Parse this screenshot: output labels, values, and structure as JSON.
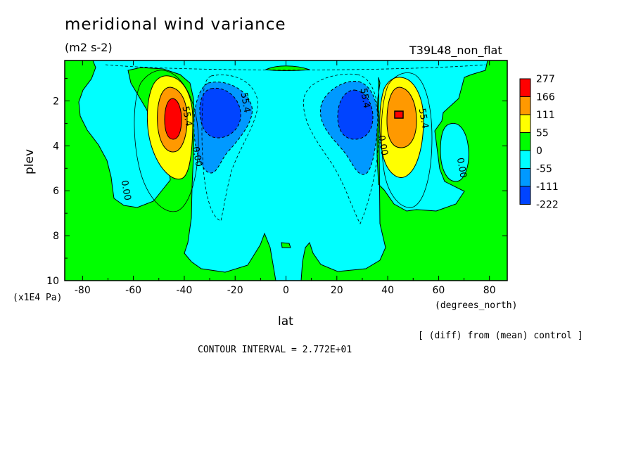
{
  "header": {
    "title": "meridional wind variance",
    "units": "(m2 s-2)",
    "run_label": "T39L48_non_flat"
  },
  "footer": {
    "y_unit_note": "(x1E4 Pa)",
    "x_unit_note": "(degrees_north)",
    "diff_note": "[ (diff) from (mean) control ]",
    "contour_interval": "CONTOUR INTERVAL = 2.772E+01"
  },
  "chart_data": {
    "type": "contour",
    "xlabel": "lat",
    "ylabel": "plev",
    "xlim": [
      -87,
      87
    ],
    "ylim": [
      10,
      0.2
    ],
    "y_inverted": true,
    "x_ticks": [
      -80,
      -60,
      -40,
      -20,
      0,
      20,
      40,
      60,
      80
    ],
    "y_ticks": [
      2,
      4,
      6,
      8,
      10
    ],
    "contour_interval": 27.72,
    "contour_labels": [
      {
        "text": "55.4",
        "lat": -40,
        "plev": 2.7
      },
      {
        "text": "55.4",
        "lat": -17,
        "plev": 2.1
      },
      {
        "text": "0.00",
        "lat": -36,
        "plev": 4.5
      },
      {
        "text": "0.00",
        "lat": -64,
        "plev": 6.0
      },
      {
        "text": "55.4",
        "lat": 30,
        "plev": 1.9
      },
      {
        "text": "0.00",
        "lat": 37,
        "plev": 4.0
      },
      {
        "text": "55.4",
        "lat": 53,
        "plev": 2.8
      },
      {
        "text": "0.00",
        "lat": 68,
        "plev": 5.0
      }
    ],
    "legend": {
      "placement": "right",
      "levels": [
        "277",
        "166",
        "111",
        "55",
        "0",
        "-55",
        "-111",
        "-222"
      ],
      "colors": [
        "#ff0000",
        "#ff9900",
        "#ffff00",
        "#00ff00",
        "#00ffff",
        "#0099ff",
        "#0044ff"
      ]
    }
  }
}
